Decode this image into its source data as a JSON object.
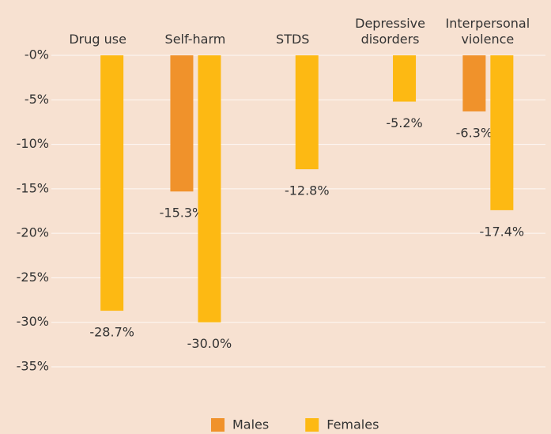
{
  "chart_data": {
    "type": "bar",
    "categories": [
      "Drug use",
      "Self-harm",
      "STDS",
      "Depressive disorders",
      "Interpersonal violence"
    ],
    "series": [
      {
        "name": "Males",
        "color": "#f0922b",
        "values": [
          null,
          -15.3,
          null,
          null,
          -6.3
        ],
        "value_labels": [
          null,
          "-15.3%",
          null,
          null,
          "-6.3%"
        ]
      },
      {
        "name": "Females",
        "color": "#fdb913",
        "values": [
          -28.7,
          -30.0,
          -12.8,
          -5.2,
          -17.4
        ],
        "value_labels": [
          "-28.7%",
          "-30.0%",
          "-12.8%",
          "-5.2%",
          "-17.4%"
        ]
      }
    ],
    "ylim": [
      -35,
      0
    ],
    "yticks": [
      {
        "value": 0,
        "label": "-0%"
      },
      {
        "value": -5,
        "label": "-5%"
      },
      {
        "value": -10,
        "label": "-10%"
      },
      {
        "value": -15,
        "label": "-15%"
      },
      {
        "value": -20,
        "label": "-20%"
      },
      {
        "value": -25,
        "label": "-25%"
      },
      {
        "value": -30,
        "label": "-30%"
      },
      {
        "value": -35,
        "label": "-35%"
      }
    ],
    "grid": true,
    "legend": "bottom"
  }
}
